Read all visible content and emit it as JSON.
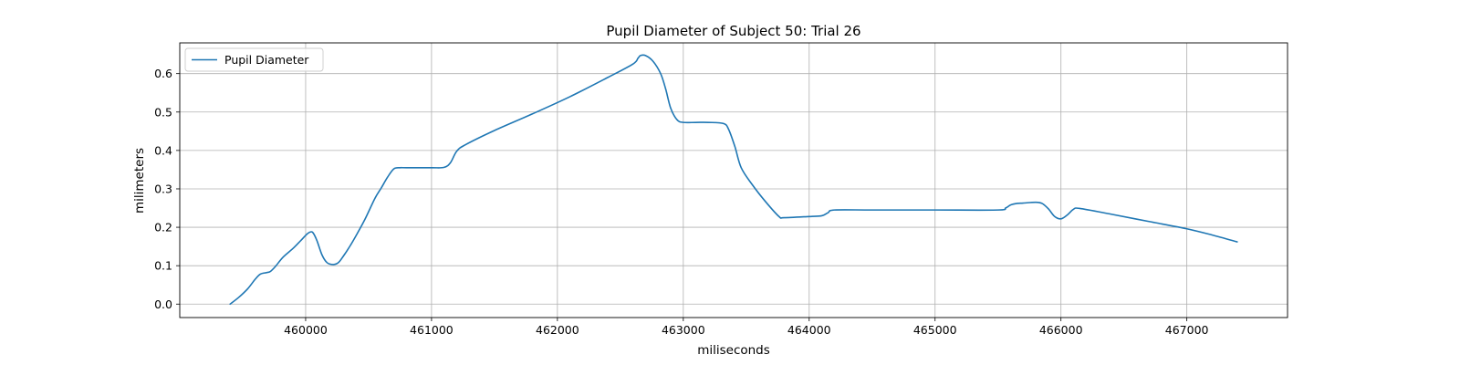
{
  "chart_data": {
    "type": "line",
    "title": "Pupil Diameter of Subject 50: Trial 26",
    "xlabel": "miliseconds",
    "ylabel": "milimeters",
    "xlim": [
      459000,
      467800
    ],
    "ylim": [
      -0.035,
      0.68
    ],
    "xticks": [
      460000,
      461000,
      462000,
      463000,
      464000,
      465000,
      466000,
      467000
    ],
    "yticks": [
      0.0,
      0.1,
      0.2,
      0.3,
      0.4,
      0.5,
      0.6
    ],
    "ytick_labels": [
      "0.0",
      "0.1",
      "0.2",
      "0.3",
      "0.4",
      "0.5",
      "0.6"
    ],
    "grid": true,
    "legend": {
      "position": "top-left",
      "entries": [
        "Pupil Diameter"
      ]
    },
    "colors": {
      "series": "#1f77b4",
      "grid": "#b0b0b0",
      "axes": "#000000"
    },
    "series": [
      {
        "name": "Pupil Diameter",
        "x": [
          459400,
          459470,
          459540,
          459600,
          459640,
          459690,
          459720,
          459760,
          459820,
          459900,
          459960,
          460010,
          460040,
          460060,
          460090,
          460130,
          460170,
          460220,
          460260,
          460300,
          460350,
          460400,
          460470,
          460550,
          460600,
          460650,
          460700,
          460750,
          460800,
          461000,
          461100,
          461150,
          461200,
          461270,
          461500,
          461800,
          462100,
          462400,
          462600,
          462640,
          462660,
          462700,
          462760,
          462820,
          462860,
          462900,
          462950,
          463000,
          463100,
          463200,
          463320,
          463360,
          463410,
          463460,
          463550,
          463650,
          463760,
          463800,
          464000,
          464100,
          464150,
          464200,
          464500,
          465000,
          465500,
          465560,
          465600,
          465650,
          465700,
          465800,
          465850,
          465900,
          465950,
          466000,
          466050,
          466100,
          466150,
          466400,
          466700,
          467000,
          467200,
          467400
        ],
        "y": [
          0.0,
          0.018,
          0.04,
          0.065,
          0.078,
          0.082,
          0.085,
          0.098,
          0.122,
          0.145,
          0.165,
          0.182,
          0.188,
          0.185,
          0.165,
          0.128,
          0.108,
          0.103,
          0.108,
          0.125,
          0.15,
          0.178,
          0.22,
          0.275,
          0.302,
          0.33,
          0.352,
          0.355,
          0.355,
          0.355,
          0.356,
          0.368,
          0.398,
          0.415,
          0.452,
          0.495,
          0.54,
          0.59,
          0.625,
          0.64,
          0.647,
          0.647,
          0.632,
          0.6,
          0.56,
          0.51,
          0.48,
          0.473,
          0.473,
          0.473,
          0.47,
          0.455,
          0.41,
          0.355,
          0.31,
          0.268,
          0.228,
          0.225,
          0.228,
          0.23,
          0.238,
          0.245,
          0.245,
          0.245,
          0.245,
          0.25,
          0.258,
          0.262,
          0.263,
          0.265,
          0.262,
          0.248,
          0.228,
          0.222,
          0.232,
          0.247,
          0.249,
          0.234,
          0.215,
          0.196,
          0.18,
          0.162
        ]
      }
    ]
  }
}
